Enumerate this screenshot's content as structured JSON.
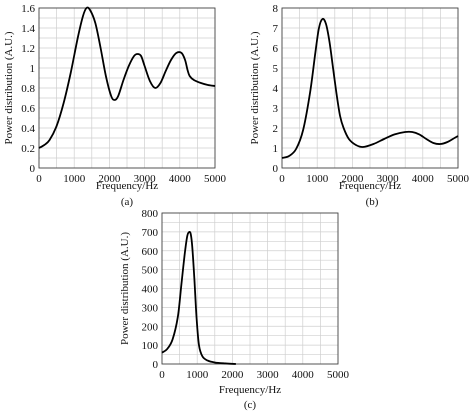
{
  "chart_data": [
    {
      "type": "line",
      "panel_label": "(a)",
      "xlabel": "Frequency/Hz",
      "ylabel": "Power distribution (A.U.)",
      "xlim": [
        0,
        5000
      ],
      "ylim": [
        0,
        1.6
      ],
      "xticks": [
        0,
        1000,
        2000,
        3000,
        4000,
        5000
      ],
      "yticks": [
        0,
        0.2,
        0.4,
        0.6,
        0.8,
        1,
        1.2,
        1.4,
        1.6
      ],
      "ytick_labels": [
        "0",
        "0.2",
        "0.4",
        "0.6",
        "0.8",
        "1",
        "1.2",
        "1.4",
        "1.6"
      ],
      "grid": true,
      "x": [
        0,
        150,
        300,
        500,
        700,
        900,
        1100,
        1250,
        1350,
        1450,
        1600,
        1750,
        1900,
        2050,
        2150,
        2250,
        2400,
        2550,
        2700,
        2800,
        2900,
        3000,
        3150,
        3300,
        3450,
        3600,
        3750,
        3900,
        4050,
        4150,
        4220,
        4280,
        4400,
        4600,
        4800,
        5000
      ],
      "values": [
        0.2,
        0.23,
        0.28,
        0.42,
        0.65,
        0.95,
        1.3,
        1.52,
        1.6,
        1.58,
        1.45,
        1.2,
        0.92,
        0.72,
        0.68,
        0.72,
        0.88,
        1.02,
        1.12,
        1.14,
        1.12,
        1.02,
        0.87,
        0.8,
        0.85,
        0.97,
        1.08,
        1.15,
        1.15,
        1.08,
        0.98,
        0.92,
        0.88,
        0.85,
        0.83,
        0.82
      ]
    },
    {
      "type": "line",
      "panel_label": "(b)",
      "xlabel": "Frequency/Hz",
      "ylabel": "Power distribution (A.U.)",
      "xlim": [
        0,
        5000
      ],
      "ylim": [
        0,
        8
      ],
      "xticks": [
        0,
        1000,
        2000,
        3000,
        4000,
        5000
      ],
      "yticks": [
        0,
        1,
        2,
        3,
        4,
        5,
        6,
        7,
        8
      ],
      "ytick_labels": [
        "0",
        "1",
        "2",
        "3",
        "4",
        "5",
        "6",
        "7",
        "8"
      ],
      "grid": true,
      "x": [
        0,
        200,
        400,
        600,
        800,
        950,
        1050,
        1150,
        1250,
        1350,
        1450,
        1550,
        1650,
        1750,
        1900,
        2100,
        2300,
        2600,
        2900,
        3200,
        3500,
        3700,
        3900,
        4100,
        4300,
        4500,
        4700,
        4900,
        5000
      ],
      "values": [
        0.5,
        0.6,
        0.95,
        1.9,
        3.8,
        5.8,
        7.0,
        7.45,
        7.2,
        6.3,
        5.0,
        3.7,
        2.6,
        2.0,
        1.45,
        1.15,
        1.05,
        1.2,
        1.45,
        1.68,
        1.8,
        1.8,
        1.68,
        1.45,
        1.25,
        1.2,
        1.3,
        1.5,
        1.6
      ]
    },
    {
      "type": "line",
      "panel_label": "(c)",
      "xlabel": "Frequency/Hz",
      "ylabel": "Power distribution (A.U.)",
      "xlim": [
        0,
        5000
      ],
      "ylim": [
        0,
        800
      ],
      "xticks": [
        0,
        1000,
        2000,
        3000,
        4000,
        5000
      ],
      "yticks": [
        0,
        100,
        200,
        300,
        400,
        500,
        600,
        700,
        800
      ],
      "ytick_labels": [
        "0",
        "100",
        "200",
        "300",
        "400",
        "500",
        "600",
        "700",
        "800"
      ],
      "grid": true,
      "x": [
        0,
        150,
        300,
        450,
        550,
        650,
        720,
        780,
        820,
        860,
        920,
        980,
        1050,
        1150,
        1300,
        1500,
        1800,
        2100
      ],
      "values": [
        60,
        80,
        130,
        250,
        420,
        590,
        680,
        700,
        685,
        620,
        450,
        250,
        100,
        40,
        18,
        8,
        3,
        0
      ]
    }
  ]
}
